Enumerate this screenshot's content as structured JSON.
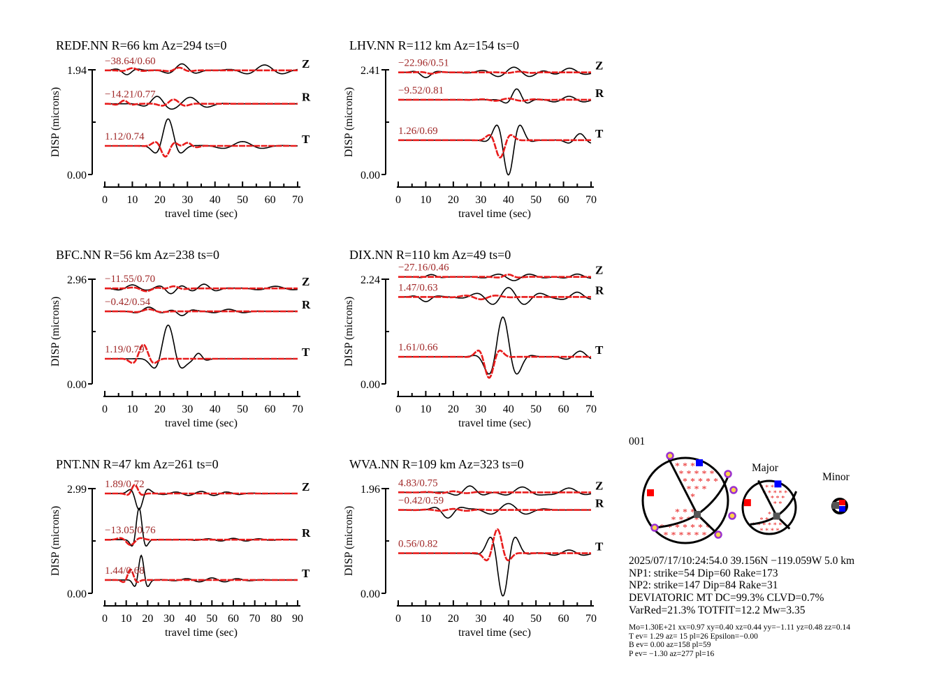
{
  "chart_data": [
    {
      "type": "line",
      "title": "REDF.NN R=66 km Az=294 ts=0",
      "ylabel": "DISP (microns)",
      "xlabel": "travel time (sec)",
      "ylim": [
        0,
        1.94
      ],
      "ytick_labels": [
        "1.94",
        "0.00"
      ],
      "xlim": [
        0,
        70
      ],
      "xticks": [
        0,
        10,
        20,
        30,
        40,
        50,
        60,
        70
      ],
      "traces": [
        {
          "component": "Z",
          "stat": "−38.64/0.60",
          "offset": 1.93,
          "black": [
            [
              8,
              -0.08,
              4,
              10
            ],
            [
              28,
              0.12,
              6,
              12
            ],
            [
              58,
              0.1,
              10,
              14
            ]
          ],
          "red": [
            [
              10,
              0.04,
              4,
              10
            ],
            [
              27,
              0.05,
              4,
              10
            ]
          ]
        },
        {
          "component": "R",
          "stat": "−14.21/0.77",
          "offset": 1.31,
          "black": [
            [
              19,
              0.13,
              5,
              12
            ],
            [
              31,
              0.12,
              8,
              14
            ]
          ],
          "red": [
            [
              7,
              0.06,
              3,
              8
            ],
            [
              25,
              0.08,
              5,
              10
            ]
          ]
        },
        {
          "component": "T",
          "stat": "1.12/0.74",
          "offset": 0.53,
          "black": [
            [
              23,
              0.5,
              4.5,
              12
            ],
            [
              50,
              0.08,
              10,
              16
            ]
          ],
          "red": [
            [
              22,
              -0.2,
              4,
              9
            ],
            [
              30,
              0.06,
              4,
              8
            ]
          ]
        }
      ]
    },
    {
      "type": "line",
      "title": "LHV.NN R=112 km Az=154 ts=0",
      "ylabel": "DISP (microns)",
      "xlabel": "travel time (sec)",
      "ylim": [
        0,
        2.41
      ],
      "ytick_labels": [
        "2.41",
        "0.00"
      ],
      "xlim": [
        0,
        70
      ],
      "xticks": [
        0,
        10,
        20,
        30,
        40,
        50,
        60,
        70
      ],
      "traces": [
        {
          "component": "Z",
          "stat": "−22.96/0.51",
          "offset": 2.35,
          "black": [
            [
              10,
              -0.12,
              4,
              12
            ],
            [
              42,
              0.12,
              12,
              12
            ],
            [
              62,
              0.1,
              7,
              14
            ]
          ],
          "red": [
            [
              12,
              -0.03,
              4,
              10
            ],
            [
              44,
              0.02,
              6,
              10
            ]
          ]
        },
        {
          "component": "R",
          "stat": "−9.52/0.81",
          "offset": 1.72,
          "black": [
            [
              43,
              0.25,
              4,
              10
            ],
            [
              62,
              0.08,
              8,
              12
            ]
          ],
          "red": [
            [
              40,
              0.03,
              10,
              10
            ]
          ]
        },
        {
          "component": "T",
          "stat": "1.26/0.69",
          "offset": 0.79,
          "black": [
            [
              40,
              -0.8,
              5,
              10
            ],
            [
              66,
              0.15,
              5,
              10
            ]
          ],
          "red": [
            [
              37,
              -0.4,
              4,
              10
            ]
          ]
        }
      ]
    },
    {
      "type": "line",
      "title": "BFC.NN R=56 km Az=238 ts=0",
      "ylabel": "DISP (microns)",
      "xlabel": "travel time (sec)",
      "ylim": [
        0,
        2.96
      ],
      "ytick_labels": [
        "2.96",
        "0.00"
      ],
      "xlim": [
        0,
        70
      ],
      "xticks": [
        0,
        10,
        20,
        30,
        40,
        50,
        60,
        70
      ],
      "traces": [
        {
          "component": "Z",
          "stat": "−11.55/0.70",
          "offset": 2.7,
          "black": [
            [
              10,
              0.1,
              6,
              12
            ],
            [
              24,
              -0.15,
              5,
              10
            ],
            [
              36,
              0.12,
              6,
              10
            ],
            [
              62,
              0.06,
              10,
              14
            ]
          ],
          "red": [
            [
              15,
              -0.08,
              5,
              12
            ],
            [
              25,
              0.06,
              4,
              10
            ]
          ]
        },
        {
          "component": "R",
          "stat": "−0.42/0.54",
          "offset": 2.05,
          "black": [
            [
              16,
              0.12,
              5,
              12
            ],
            [
              28,
              -0.12,
              4,
              10
            ],
            [
              45,
              0.06,
              8,
              12
            ]
          ],
          "red": [
            [
              16,
              0.06,
              5,
              12
            ]
          ]
        },
        {
          "component": "T",
          "stat": "1.19/0.79",
          "offset": 0.71,
          "black": [
            [
              23,
              0.95,
              5,
              13
            ],
            [
              34,
              0.15,
              3,
              8
            ]
          ],
          "red": [
            [
              14,
              0.4,
              4,
              10
            ]
          ]
        }
      ]
    },
    {
      "type": "line",
      "title": "DIX.NN R=110 km Az=49 ts=0",
      "ylabel": "DISP (microns)",
      "xlabel": "travel time (sec)",
      "ylim": [
        0,
        2.24
      ],
      "ytick_labels": [
        "2.24",
        "0.00"
      ],
      "xlim": [
        0,
        70
      ],
      "xticks": [
        0,
        10,
        20,
        30,
        40,
        50,
        60,
        70
      ],
      "traces": [
        {
          "component": "Z",
          "stat": "−27.16/0.46",
          "offset": 2.29,
          "black": [
            [
              12,
              0.05,
              4,
              10
            ],
            [
              42,
              -0.08,
              10,
              12
            ],
            [
              65,
              0.06,
              6,
              12
            ]
          ],
          "red": [
            [
              40,
              0.05,
              4,
              10
            ]
          ]
        },
        {
          "component": "R",
          "stat": "1.47/0.63",
          "offset": 1.86,
          "black": [
            [
              10,
              -0.1,
              4,
              12
            ],
            [
              40,
              0.2,
              12,
              12
            ],
            [
              65,
              0.1,
              6,
              12
            ]
          ],
          "red": [
            [
              30,
              -0.05,
              8,
              12
            ]
          ]
        },
        {
          "component": "T",
          "stat": "1.61/0.66",
          "offset": 0.58,
          "black": [
            [
              38,
              0.85,
              6,
              12
            ],
            [
              66,
              0.12,
              6,
              12
            ]
          ],
          "red": [
            [
              33,
              -0.45,
              4,
              10
            ]
          ]
        }
      ]
    },
    {
      "type": "line",
      "title": "PNT.NN R=47 km Az=261 ts=0",
      "ylabel": "DISP (microns)",
      "xlabel": "travel time (sec)",
      "ylim": [
        0,
        2.99
      ],
      "ytick_labels": [
        "2.99",
        "0.00"
      ],
      "xlim": [
        0,
        90
      ],
      "xticks": [
        0,
        10,
        20,
        30,
        40,
        50,
        60,
        70,
        80,
        90
      ],
      "traces": [
        {
          "component": "Z",
          "stat": "1.89/0.72",
          "offset": 2.85,
          "black": [
            [
              16,
              -0.45,
              4,
              11
            ],
            [
              45,
              0.06,
              20,
              12
            ]
          ],
          "red": [
            [
              14,
              0.25,
              3,
              10
            ]
          ]
        },
        {
          "component": "R",
          "stat": "−13.05/0.76",
          "offset": 1.53,
          "black": [
            [
              16,
              0.9,
              3,
              9
            ],
            [
              60,
              0.04,
              20,
              12
            ]
          ],
          "red": [
            [
              12,
              -0.15,
              5,
              12
            ]
          ]
        },
        {
          "component": "T",
          "stat": "1.44/0.68",
          "offset": 0.38,
          "black": [
            [
              17,
              0.7,
              3,
              8
            ],
            [
              50,
              0.06,
              18,
              12
            ]
          ],
          "red": [
            [
              12,
              0.3,
              3,
              9
            ]
          ]
        }
      ]
    },
    {
      "type": "line",
      "title": "WVA.NN R=109 km Az=323 ts=0",
      "ylabel": "DISP (microns)",
      "xlabel": "travel time (sec)",
      "ylim": [
        0,
        1.96
      ],
      "ytick_labels": [
        "1.96",
        "0.00"
      ],
      "xlim": [
        0,
        70
      ],
      "xticks": [
        0,
        10,
        20,
        30,
        40,
        50,
        60,
        70
      ],
      "traces": [
        {
          "component": "Z",
          "stat": "4.83/0.75",
          "offset": 1.89,
          "black": [
            [
              26,
              0.12,
              6,
              12
            ],
            [
              45,
              0.1,
              8,
              14
            ],
            [
              62,
              0.08,
              8,
              14
            ]
          ],
          "red": [
            [
              20,
              0.02,
              10,
              10
            ]
          ]
        },
        {
          "component": "R",
          "stat": "−0.42/0.59",
          "offset": 1.56,
          "black": [
            [
              18,
              -0.15,
              5,
              12
            ],
            [
              40,
              0.12,
              10,
              14
            ]
          ],
          "red": [
            [
              20,
              0.02,
              10,
              10
            ]
          ]
        },
        {
          "component": "T",
          "stat": "0.56/0.82",
          "offset": 0.75,
          "black": [
            [
              38,
              -0.8,
              5,
              11
            ],
            [
              62,
              0.06,
              8,
              12
            ]
          ],
          "red": [
            [
              36,
              0.45,
              4,
              10
            ]
          ]
        }
      ]
    }
  ],
  "mechanism": {
    "event_id": "001",
    "major_label": "Major",
    "minor_label": "Minor",
    "lines": [
      "2025/07/17/10:24:54.0 39.156N −119.059W 5.0 km",
      "NP1: strike=54 Dip=60 Rake=173",
      "NP2: strike=147 Dip=84 Rake=31",
      "DEVIATORIC MT DC=99.3% CLVD=0.7%",
      "VarRed=21.3% TOTFIT=12.2 Mw=3.35"
    ],
    "small_lines": [
      "Mo=1.30E+21 xx=0.97 xy=0.40 xz=0.44 yy=−1.11 yz=0.48 zz=0.14",
      "T ev=  1.29 az= 15 pl=26 Epsilon=−0.00",
      "B ev=  0.00 az=158 pl=59",
      "P ev= −1.30 az=277 pl=16"
    ],
    "colors": {
      "compression": "#e81c1c",
      "t_axis": "#0000ff",
      "p_axis": "#ff0000",
      "b_axis": "#555555",
      "station": "#9b30d0"
    }
  }
}
